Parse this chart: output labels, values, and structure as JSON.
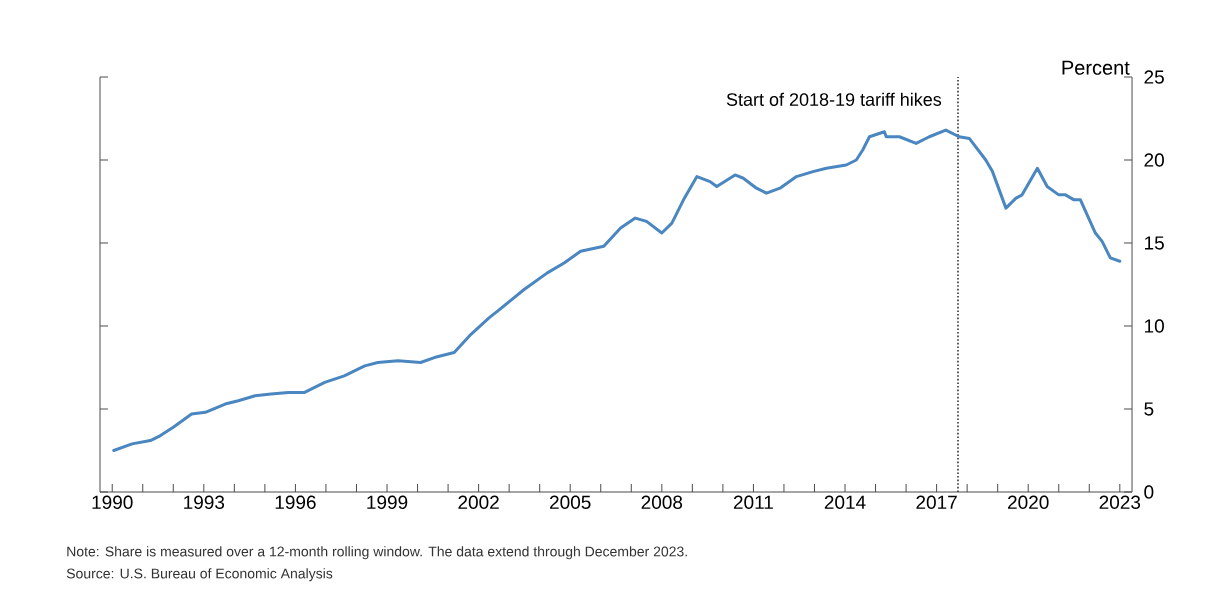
{
  "chart_data": {
    "type": "line",
    "ylabel": "Percent",
    "color": "#4a86c0",
    "marker": "none",
    "line_style": "solid",
    "x": [
      1990.05,
      1990.65,
      1991.25,
      1991.58,
      1992.0,
      1992.6,
      1993.05,
      1993.7,
      1994.13,
      1994.68,
      1995.2,
      1995.77,
      1996.3,
      1996.96,
      1997.6,
      1998.27,
      1998.7,
      1999.36,
      2000.1,
      2000.55,
      2001.2,
      2001.75,
      2002.35,
      2002.62,
      2003.49,
      2004.25,
      2004.8,
      2005.34,
      2006.1,
      2006.65,
      2007.13,
      2007.5,
      2008.0,
      2008.33,
      2008.71,
      2009.15,
      2009.58,
      2009.8,
      2010.4,
      2010.67,
      2011.1,
      2011.43,
      2011.87,
      2012.41,
      2012.95,
      2013.39,
      2014.04,
      2014.37,
      2014.58,
      2014.8,
      2015.29,
      2015.35,
      2015.78,
      2016.33,
      2016.76,
      2017.3,
      2017.74,
      2018.07,
      2018.61,
      2018.83,
      2019.27,
      2019.6,
      2019.8,
      2020.3,
      2020.62,
      2021.0,
      2021.22,
      2021.5,
      2021.71,
      2022.2,
      2022.42,
      2022.69,
      2023.0
    ],
    "values": [
      2.5,
      2.9,
      3.1,
      3.4,
      3.9,
      4.7,
      4.8,
      5.3,
      5.5,
      5.8,
      5.9,
      6.0,
      6.0,
      6.6,
      7.0,
      7.6,
      7.8,
      7.9,
      7.8,
      8.1,
      8.4,
      9.5,
      10.5,
      10.9,
      12.2,
      13.2,
      13.8,
      14.5,
      14.8,
      15.9,
      16.5,
      16.3,
      15.6,
      16.2,
      17.6,
      19.0,
      18.7,
      18.4,
      19.1,
      18.9,
      18.3,
      18.0,
      18.3,
      19.0,
      19.3,
      19.5,
      19.7,
      20.0,
      20.6,
      21.4,
      21.7,
      21.4,
      21.4,
      21.0,
      21.4,
      21.8,
      21.4,
      21.3,
      20.0,
      19.3,
      17.1,
      17.7,
      17.9,
      19.5,
      18.4,
      17.9,
      17.9,
      17.6,
      17.6,
      15.6,
      15.1,
      14.1,
      13.9
    ],
    "xlim": [
      1989.6,
      2023.4
    ],
    "ylim": [
      0,
      25
    ],
    "yticks": [
      0,
      5,
      10,
      15,
      20,
      25
    ],
    "xticks": [
      1990,
      {
        "value": 1991,
        "label": null
      },
      {
        "value": 1992,
        "label": null
      },
      1993,
      {
        "value": 1994,
        "label": null
      },
      {
        "value": 1995,
        "label": null
      },
      1996,
      {
        "value": 1997,
        "label": null
      },
      {
        "value": 1998,
        "label": null
      },
      1999,
      {
        "value": 2000,
        "label": null
      },
      {
        "value": 2001,
        "label": null
      },
      2002,
      {
        "value": 2003,
        "label": null
      },
      {
        "value": 2004,
        "label": null
      },
      2005,
      {
        "value": 2006,
        "label": null
      },
      {
        "value": 2007,
        "label": null
      },
      2008,
      {
        "value": 2009,
        "label": null
      },
      {
        "value": 2010,
        "label": null
      },
      2011,
      {
        "value": 2012,
        "label": null
      },
      {
        "value": 2013,
        "label": null
      },
      2014,
      {
        "value": 2015,
        "label": null
      },
      {
        "value": 2016,
        "label": null
      },
      2017,
      {
        "value": 2018,
        "label": null
      },
      {
        "value": 2019,
        "label": null
      },
      2020,
      {
        "value": 2021,
        "label": null
      },
      {
        "value": 2022,
        "label": null
      },
      2023
    ],
    "ref_lines": [
      {
        "axis": "x",
        "value": 2017.7,
        "label": "Start of 2018-19 tariff hikes",
        "line_style": "dotted"
      }
    ],
    "annotations": [
      "Note: Share is measured over a 12-month rolling window. The data extend through December 2023.",
      "Source: U.S. Bureau of Economic Analysis"
    ]
  }
}
